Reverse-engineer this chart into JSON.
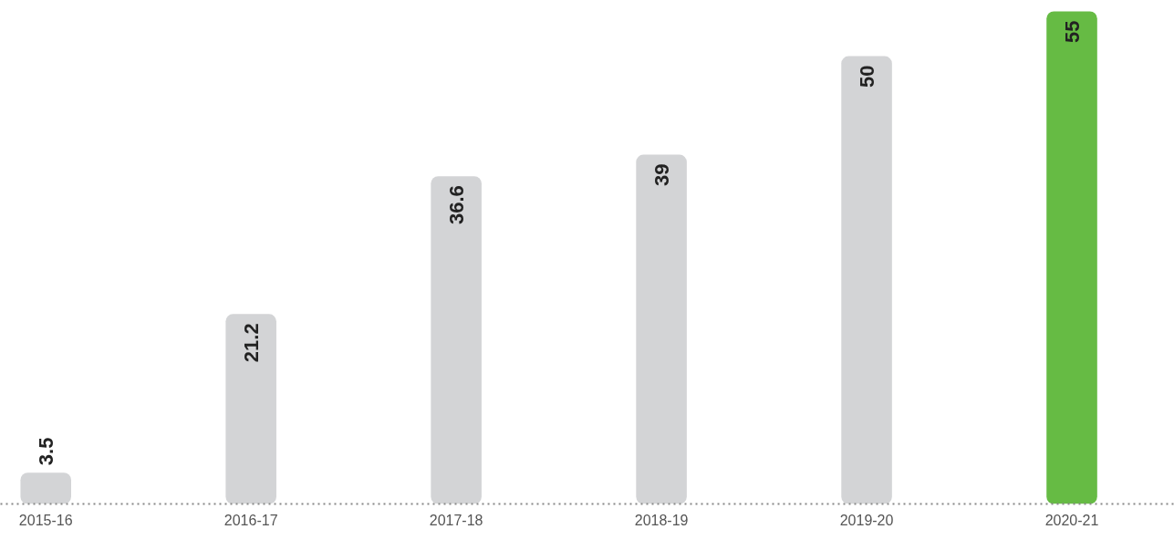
{
  "chart_data": {
    "type": "bar",
    "categories": [
      "2015-16",
      "2016-17",
      "2017-18",
      "2018-19",
      "2019-20",
      "2020-21"
    ],
    "values": [
      3.5,
      21.2,
      36.6,
      39,
      50,
      55
    ],
    "colors": [
      "#d3d4d6",
      "#d3d4d6",
      "#d3d4d6",
      "#d3d4d6",
      "#d3d4d6",
      "#66bb44"
    ],
    "data_labels": true,
    "grid": false,
    "tick_labels": "x"
  }
}
